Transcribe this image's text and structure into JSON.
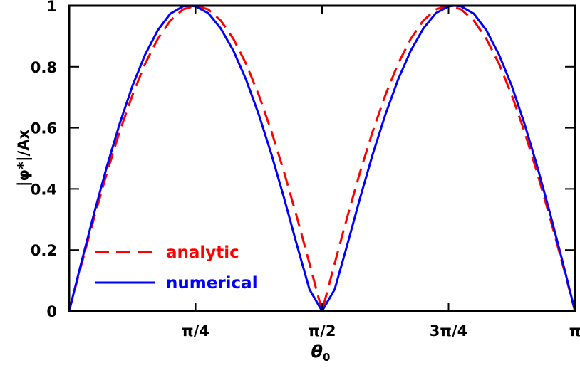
{
  "chart_data": {
    "type": "line",
    "xlabel": "θ",
    "xlabel_subscript": "0",
    "ylabel": "|φ*|/Ax",
    "xlim": [
      0,
      3.14159265
    ],
    "ylim": [
      0,
      1
    ],
    "x_ticks": [
      {
        "value": 0.785398,
        "label": "π/4"
      },
      {
        "value": 1.570796,
        "label": "π/2"
      },
      {
        "value": 2.356194,
        "label": "3π/4"
      },
      {
        "value": 3.141593,
        "label": "π"
      }
    ],
    "y_ticks": [
      {
        "value": 0,
        "label": "0"
      },
      {
        "value": 0.2,
        "label": "0.2"
      },
      {
        "value": 0.4,
        "label": "0.4"
      },
      {
        "value": 0.6,
        "label": "0.6"
      },
      {
        "value": 0.8,
        "label": "0.8"
      },
      {
        "value": 1,
        "label": "1"
      }
    ],
    "grid": false,
    "legend_position": "bottom-left",
    "series": [
      {
        "name": "analytic",
        "color": "#ff0000",
        "style": "dashed",
        "x": [
          0.0,
          0.0785,
          0.1571,
          0.2356,
          0.3142,
          0.3927,
          0.4712,
          0.5498,
          0.6283,
          0.7069,
          0.7854,
          0.8639,
          0.9425,
          1.021,
          1.0996,
          1.1781,
          1.2566,
          1.3352,
          1.4137,
          1.4923,
          1.5708,
          1.6493,
          1.7279,
          1.8064,
          1.885,
          1.9635,
          2.042,
          2.1206,
          2.1991,
          2.2777,
          2.3562,
          2.4347,
          2.5133,
          2.5918,
          2.6704,
          2.7489,
          2.8274,
          2.906,
          2.9845,
          3.0631,
          3.1416
        ],
        "y": [
          0.0,
          0.156,
          0.309,
          0.454,
          0.588,
          0.707,
          0.809,
          0.891,
          0.951,
          0.988,
          1.0,
          0.988,
          0.951,
          0.891,
          0.809,
          0.707,
          0.588,
          0.454,
          0.309,
          0.156,
          0.0,
          0.156,
          0.309,
          0.454,
          0.588,
          0.707,
          0.809,
          0.891,
          0.951,
          0.988,
          1.0,
          0.988,
          0.951,
          0.891,
          0.809,
          0.707,
          0.588,
          0.454,
          0.309,
          0.156,
          0.0
        ]
      },
      {
        "name": "numerical",
        "color": "#0000ff",
        "style": "solid",
        "x": [
          0.0,
          0.0785,
          0.1571,
          0.2356,
          0.3142,
          0.3927,
          0.4712,
          0.5498,
          0.6283,
          0.7069,
          0.7479,
          0.7854,
          0.8639,
          0.9425,
          1.021,
          1.0996,
          1.1781,
          1.2566,
          1.3352,
          1.4137,
          1.4923,
          1.5708,
          1.6493,
          1.7279,
          1.8064,
          1.885,
          1.9635,
          2.042,
          2.1206,
          2.1991,
          2.2777,
          2.3562,
          2.3937,
          2.4347,
          2.5133,
          2.5918,
          2.6704,
          2.7489,
          2.8274,
          2.906,
          2.9845,
          3.0631,
          3.1416
        ],
        "y": [
          0.0,
          0.164,
          0.324,
          0.475,
          0.614,
          0.737,
          0.839,
          0.919,
          0.974,
          0.998,
          1.0,
          0.998,
          0.976,
          0.925,
          0.852,
          0.757,
          0.643,
          0.513,
          0.369,
          0.218,
          0.071,
          0.0,
          0.071,
          0.218,
          0.369,
          0.513,
          0.643,
          0.757,
          0.852,
          0.925,
          0.976,
          0.998,
          1.0,
          0.998,
          0.974,
          0.919,
          0.839,
          0.737,
          0.614,
          0.475,
          0.324,
          0.164,
          0.0
        ]
      }
    ]
  }
}
